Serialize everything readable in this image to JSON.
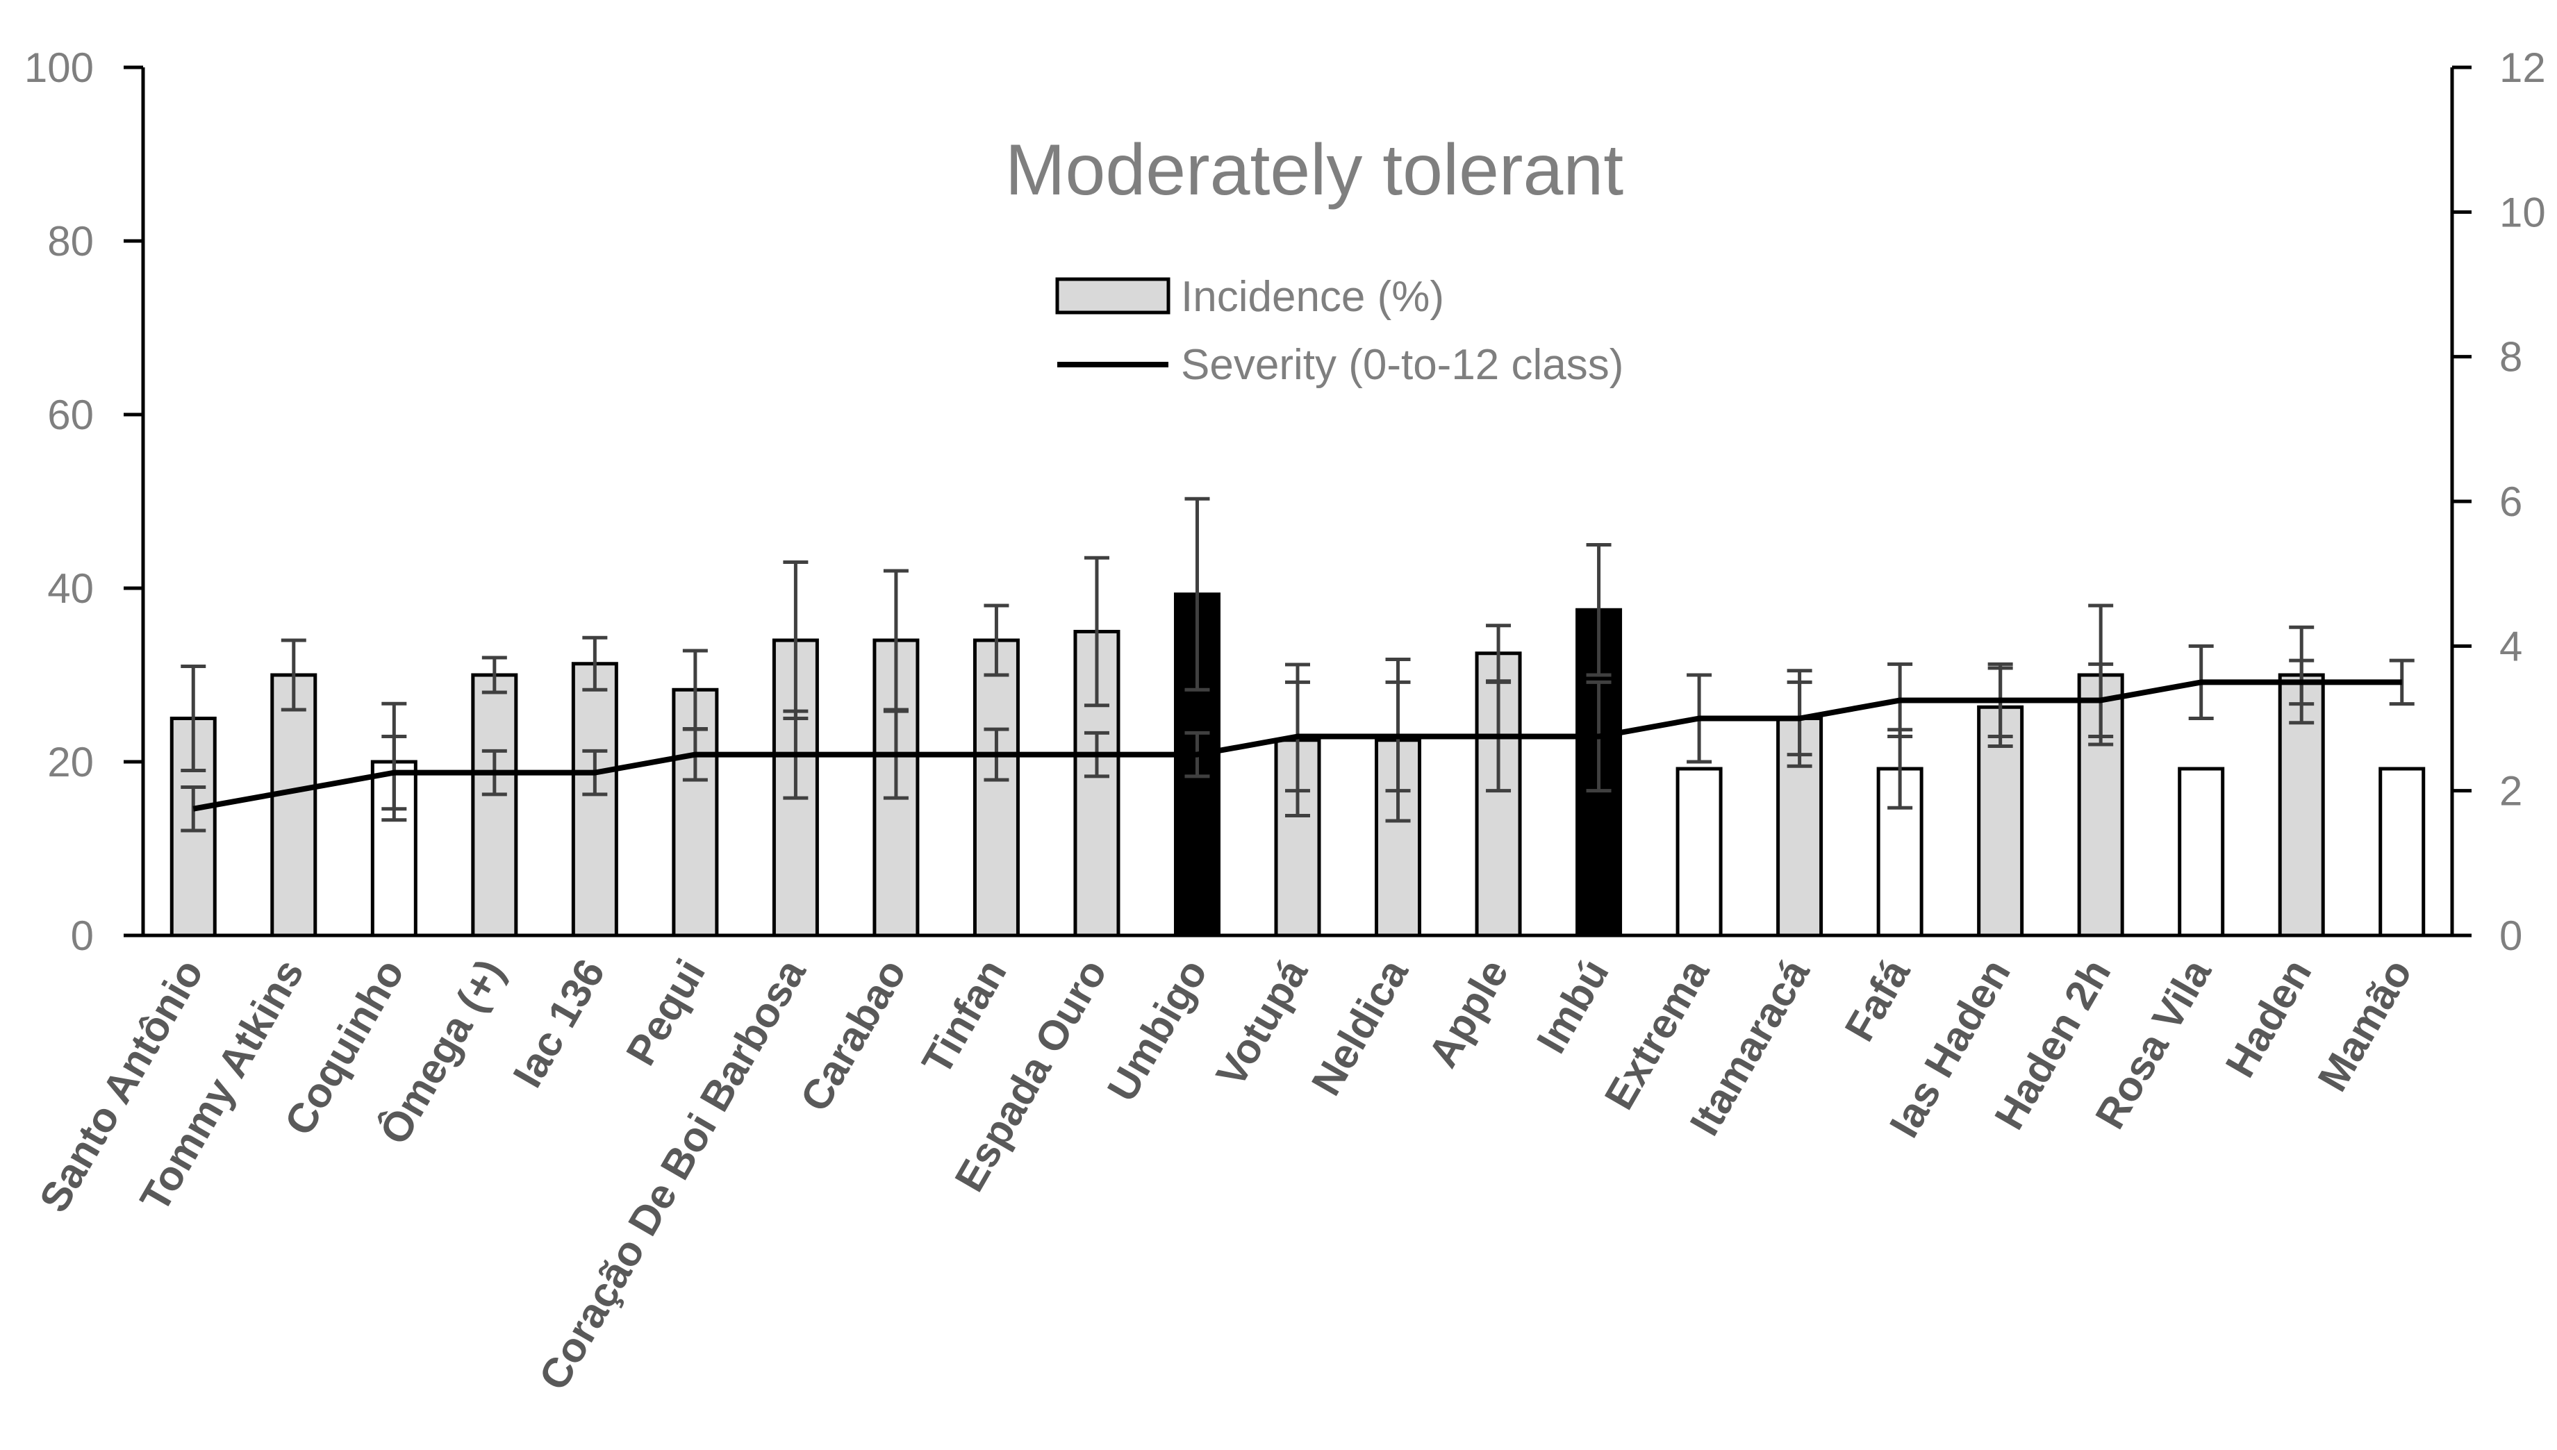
{
  "chart_data": {
    "type": "bar+line",
    "title": "Moderately tolerant",
    "categories": [
      "Santo Antônio",
      "Tommy Atkins",
      "Coquinho",
      "Ômega (+)",
      "Iac 136",
      "Pequi",
      "Coração De Boi Barbosa",
      "Carabao",
      "Tinfan",
      "Espada Ouro",
      "Umbigo",
      "Votupá",
      "Neldica",
      "Apple",
      "Imbú",
      "Extrema",
      "Itamaracá",
      "Fafá",
      "Ias Haden",
      "Haden 2h",
      "Rosa Vila",
      "Haden",
      "Mamão"
    ],
    "y_left": {
      "min": 0,
      "max": 100,
      "ticks": [
        "0",
        "20",
        "40",
        "60",
        "80",
        "100"
      ]
    },
    "y_right": {
      "min": 0,
      "max": 12,
      "ticks": [
        "0",
        "2",
        "4",
        "6",
        "8",
        "10",
        "12"
      ]
    },
    "series": [
      {
        "name": "Incidence (%)",
        "type": "bar",
        "axis": "left",
        "values": [
          25,
          30,
          20,
          30,
          31.3,
          28.3,
          34,
          34,
          34,
          35,
          39.3,
          22.5,
          22.5,
          32.5,
          37.5,
          19.2,
          25,
          19.2,
          26.3,
          30,
          19.2,
          30,
          19.2
        ],
        "error": [
          6,
          4,
          6.7,
          2,
          3,
          4.5,
          9,
          8,
          4,
          8.5,
          11,
          8.7,
          9.3,
          3.2,
          7.5,
          0,
          5.5,
          4.5,
          4.5,
          8,
          0,
          5.5,
          0
        ],
        "fills": [
          "gray",
          "gray",
          "white",
          "gray",
          "gray",
          "gray",
          "gray",
          "gray",
          "gray",
          "gray",
          "black",
          "gray",
          "gray",
          "gray",
          "black",
          "white",
          "gray",
          "white",
          "gray",
          "gray",
          "white",
          "gray",
          "white"
        ]
      },
      {
        "name": "Severity (0-to-12 class)",
        "type": "line",
        "axis": "right",
        "values": [
          1.75,
          2.0,
          2.25,
          2.25,
          2.25,
          2.5,
          2.5,
          2.5,
          2.5,
          2.5,
          2.5,
          2.75,
          2.75,
          2.75,
          2.75,
          3.0,
          3.0,
          3.25,
          3.25,
          3.25,
          3.5,
          3.5,
          3.5
        ],
        "error": [
          0.3,
          0,
          0.5,
          0.3,
          0.3,
          0.35,
          0.6,
          0.6,
          0.35,
          0.3,
          0.3,
          0.75,
          0.75,
          0.75,
          0.75,
          0.6,
          0.5,
          0.5,
          0.5,
          0.5,
          0.5,
          0.3,
          0.3
        ]
      }
    ],
    "colors": {
      "gray": "#d9d9d9",
      "white": "#ffffff",
      "black": "#000000",
      "axis": "#000000",
      "error": "#404040",
      "text": "#7f7f7f"
    },
    "legend": {
      "placement": "top-center"
    }
  }
}
